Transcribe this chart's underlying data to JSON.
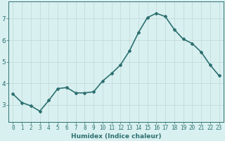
{
  "x": [
    0,
    1,
    2,
    3,
    4,
    5,
    6,
    7,
    8,
    9,
    10,
    11,
    12,
    13,
    14,
    15,
    16,
    17,
    18,
    19,
    20,
    21,
    22,
    23
  ],
  "y": [
    3.5,
    3.1,
    2.95,
    2.7,
    3.2,
    3.75,
    3.8,
    3.55,
    3.55,
    3.6,
    4.1,
    4.45,
    4.85,
    5.5,
    6.35,
    7.05,
    7.25,
    7.1,
    6.5,
    6.05,
    5.85,
    5.45,
    4.85,
    4.35
  ],
  "line_color": "#2d7070",
  "marker": "D",
  "marker_size": 2,
  "bg_color": "#d9f0f0",
  "grid_color": "#c8dede",
  "axis_color": "#2d7070",
  "xlabel": "Humidex (Indice chaleur)",
  "xlabel_fontsize": 6.5,
  "tick_fontsize": 5.5,
  "ylim": [
    2.2,
    7.8
  ],
  "yticks": [
    3,
    4,
    5,
    6,
    7
  ],
  "line_width": 1.2
}
